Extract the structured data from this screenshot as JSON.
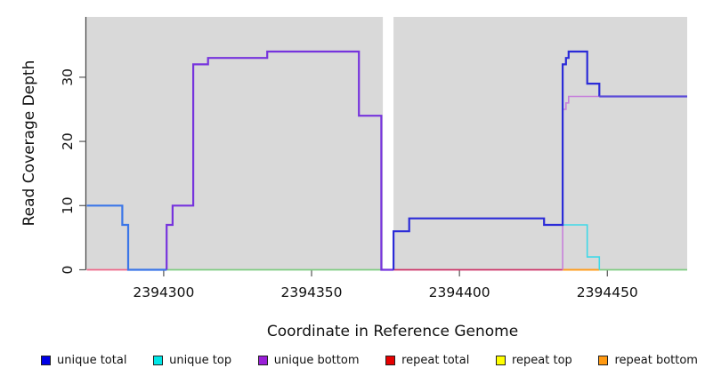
{
  "axes": {
    "x_label": "Coordinate in Reference Genome",
    "y_label": "Read Coverage Depth"
  },
  "legend": [
    {
      "label": "unique total",
      "color": "#0000e6"
    },
    {
      "label": "unique top",
      "color": "#00e6e6"
    },
    {
      "label": "unique bottom",
      "color": "#9a1fd8"
    },
    {
      "label": "repeat total",
      "color": "#e60000"
    },
    {
      "label": "repeat top",
      "color": "#ffff00"
    },
    {
      "label": "repeat bottom",
      "color": "#ff9912"
    }
  ],
  "chart_data": {
    "type": "line",
    "title": "",
    "xlabel": "Coordinate in Reference Genome",
    "ylabel": "Read Coverage Depth",
    "xlim": [
      2394274,
      2394477
    ],
    "ylim": [
      0,
      39.4
    ],
    "x_ticks": [
      2394300,
      2394350,
      2394400,
      2394450
    ],
    "y_ticks": [
      0,
      10,
      20,
      30
    ],
    "plot_bg": "#d9d9d9",
    "gap_region": {
      "from": 2394374.1,
      "to": 2394377.7,
      "color": "#ffffff"
    },
    "grid": false,
    "legend_position": "bottom",
    "series": [
      {
        "name": "repeat-total-baseline-left",
        "color": "#ee6688",
        "width": 1.8,
        "points": [
          [
            2394274,
            0
          ],
          [
            2394288,
            0
          ]
        ]
      },
      {
        "name": "baseline-green-mid",
        "color": "#7ecb80",
        "width": 1.8,
        "points": [
          [
            2394301,
            0
          ],
          [
            2394374.1,
            0
          ]
        ]
      },
      {
        "name": "baseline-crimson-right",
        "color": "#cc3366",
        "width": 1.8,
        "points": [
          [
            2394377.7,
            0
          ],
          [
            2394434.9,
            0
          ]
        ]
      },
      {
        "name": "repeat-bottom-baseline",
        "color": "#ff9d1e",
        "width": 2,
        "points": [
          [
            2394434.9,
            0
          ],
          [
            2394447.3,
            0
          ]
        ]
      },
      {
        "name": "baseline-green-right",
        "color": "#7ecb80",
        "width": 1.8,
        "points": [
          [
            2394447.3,
            0
          ],
          [
            2394477,
            0
          ]
        ]
      },
      {
        "name": "unique-top-right",
        "color": "#40d9e8",
        "width": 1.6,
        "points": [
          [
            2394434.9,
            7
          ],
          [
            2394443.2,
            7
          ],
          [
            2394443.2,
            2
          ],
          [
            2394447.3,
            2
          ],
          [
            2394447.3,
            0
          ]
        ]
      },
      {
        "name": "unique-bottom-right",
        "color": "#c77fdb",
        "width": 1.6,
        "points": [
          [
            2394434.9,
            0
          ],
          [
            2394434.9,
            25
          ],
          [
            2394436,
            25
          ],
          [
            2394436,
            26
          ],
          [
            2394436.9,
            26
          ],
          [
            2394436.9,
            27
          ],
          [
            2394477,
            27
          ]
        ]
      },
      {
        "name": "unique-total-left",
        "color": "#3b76e8",
        "width": 2.2,
        "points": [
          [
            2394274,
            10
          ],
          [
            2394286,
            10
          ],
          [
            2394286,
            7
          ],
          [
            2394288,
            7
          ],
          [
            2394288,
            0
          ],
          [
            2394301,
            0
          ]
        ]
      },
      {
        "name": "unique-bottom-left",
        "color": "#7633dd",
        "width": 2.2,
        "points": [
          [
            2394301,
            0
          ],
          [
            2394301,
            7
          ],
          [
            2394303,
            7
          ],
          [
            2394303,
            10
          ],
          [
            2394310,
            10
          ],
          [
            2394310,
            32
          ],
          [
            2394315,
            32
          ],
          [
            2394315,
            33
          ],
          [
            2394335,
            33
          ],
          [
            2394335,
            34
          ],
          [
            2394366,
            34
          ],
          [
            2394366,
            24
          ],
          [
            2394373.6,
            24
          ],
          [
            2394373.6,
            0
          ],
          [
            2394377.7,
            0
          ]
        ]
      },
      {
        "name": "unique-total-right",
        "color": "#2b2bd8",
        "width": 2.2,
        "points": [
          [
            2394377.7,
            0
          ],
          [
            2394377.7,
            6
          ],
          [
            2394383,
            6
          ],
          [
            2394383,
            8
          ],
          [
            2394428.6,
            8
          ],
          [
            2394428.6,
            7
          ],
          [
            2394434.9,
            7
          ],
          [
            2394434.9,
            32
          ],
          [
            2394436,
            32
          ],
          [
            2394436,
            33
          ],
          [
            2394436.9,
            33
          ],
          [
            2394436.9,
            34
          ],
          [
            2394443.2,
            34
          ],
          [
            2394443.2,
            29
          ],
          [
            2394447.3,
            29
          ],
          [
            2394447.3,
            27
          ]
        ]
      },
      {
        "name": "merged-total-bottom-right",
        "color": "#5b4bd8",
        "width": 2.2,
        "points": [
          [
            2394447.3,
            27
          ],
          [
            2394477,
            27
          ]
        ]
      }
    ]
  }
}
